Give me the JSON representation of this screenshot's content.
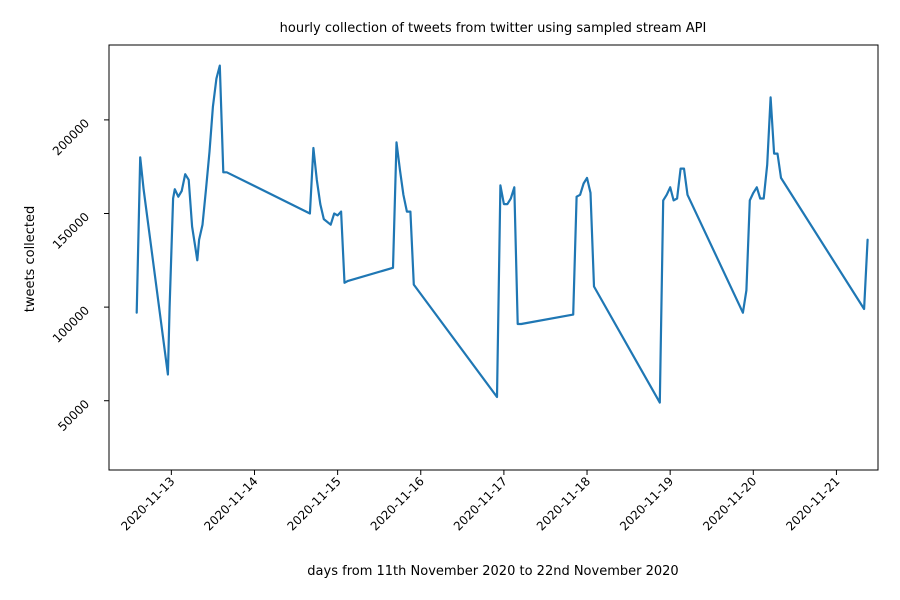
{
  "chart_data": {
    "type": "line",
    "title": "hourly collection of tweets from twitter using sampled stream API",
    "xlabel": "days from 11th November 2020 to 22nd November 2020",
    "ylabel": "tweets collected",
    "x_tick_labels": [
      "2020-11-13",
      "2020-11-14",
      "2020-11-15",
      "2020-11-16",
      "2020-11-17",
      "2020-11-18",
      "2020-11-19",
      "2020-11-20",
      "2020-11-21"
    ],
    "y_tick_labels": [
      "50000",
      "100000",
      "150000",
      "200000"
    ],
    "y_ticks": [
      50000,
      100000,
      150000,
      200000
    ],
    "xlim": [
      "2020-11-12 06:00",
      "2020-11-21 12:00"
    ],
    "ylim": [
      13000,
      240000
    ],
    "grid": false,
    "series": [
      {
        "color": "#1f77b4",
        "x": [
          "2020-11-12 14:00",
          "2020-11-12 15:00",
          "2020-11-12 16:00",
          "2020-11-12 23:00",
          "2020-11-12 23:30",
          "2020-11-13 00:30",
          "2020-11-13 01:00",
          "2020-11-13 02:00",
          "2020-11-13 03:00",
          "2020-11-13 04:00",
          "2020-11-13 05:00",
          "2020-11-13 06:00",
          "2020-11-13 07:00",
          "2020-11-13 07:30",
          "2020-11-13 08:00",
          "2020-11-13 09:00",
          "2020-11-13 10:00",
          "2020-11-13 11:00",
          "2020-11-13 12:00",
          "2020-11-13 13:00",
          "2020-11-13 14:00",
          "2020-11-13 15:00",
          "2020-11-13 16:00",
          "2020-11-14 16:00",
          "2020-11-14 17:00",
          "2020-11-14 18:00",
          "2020-11-14 19:00",
          "2020-11-14 20:00",
          "2020-11-14 22:00",
          "2020-11-14 23:00",
          "2020-11-15 00:00",
          "2020-11-15 01:00",
          "2020-11-15 02:00",
          "2020-11-15 03:00",
          "2020-11-15 16:00",
          "2020-11-15 17:00",
          "2020-11-15 18:00",
          "2020-11-15 19:00",
          "2020-11-15 20:00",
          "2020-11-15 21:00",
          "2020-11-15 22:00",
          "2020-11-16 22:00",
          "2020-11-16 23:00",
          "2020-11-17 00:00",
          "2020-11-17 01:00",
          "2020-11-17 02:00",
          "2020-11-17 03:00",
          "2020-11-17 04:00",
          "2020-11-17 05:00",
          "2020-11-17 20:00",
          "2020-11-17 21:00",
          "2020-11-17 22:00",
          "2020-11-17 23:00",
          "2020-11-18 00:00",
          "2020-11-18 01:00",
          "2020-11-18 02:00",
          "2020-11-18 21:00",
          "2020-11-18 22:00",
          "2020-11-18 23:00",
          "2020-11-19 00:00",
          "2020-11-19 01:00",
          "2020-11-19 02:00",
          "2020-11-19 03:00",
          "2020-11-19 04:00",
          "2020-11-19 05:00",
          "2020-11-19 21:00",
          "2020-11-19 22:00",
          "2020-11-19 23:00",
          "2020-11-20 00:00",
          "2020-11-20 01:00",
          "2020-11-20 02:00",
          "2020-11-20 03:00",
          "2020-11-20 04:00",
          "2020-11-20 05:00",
          "2020-11-20 06:00",
          "2020-11-20 07:00",
          "2020-11-20 08:00",
          "2020-11-21 08:00",
          "2020-11-21 09:00"
        ],
        "values": [
          97000,
          180000,
          163000,
          64000,
          100000,
          158000,
          163000,
          159000,
          162000,
          171000,
          168000,
          143000,
          131000,
          125000,
          136000,
          144000,
          163000,
          183000,
          207000,
          222000,
          229000,
          172000,
          172000,
          150000,
          185000,
          168000,
          155000,
          147000,
          144000,
          150000,
          149000,
          151000,
          113000,
          114000,
          121000,
          188000,
          173000,
          160000,
          151000,
          151000,
          112000,
          52000,
          165000,
          155000,
          155000,
          158000,
          164000,
          91000,
          91000,
          96000,
          159000,
          160000,
          166000,
          169000,
          161000,
          111000,
          49000,
          157000,
          160000,
          164000,
          157000,
          158000,
          174000,
          174000,
          160000,
          97000,
          109000,
          157000,
          161000,
          164000,
          158000,
          158000,
          176000,
          212000,
          182000,
          182000,
          169000,
          99000,
          136000
        ]
      }
    ]
  }
}
